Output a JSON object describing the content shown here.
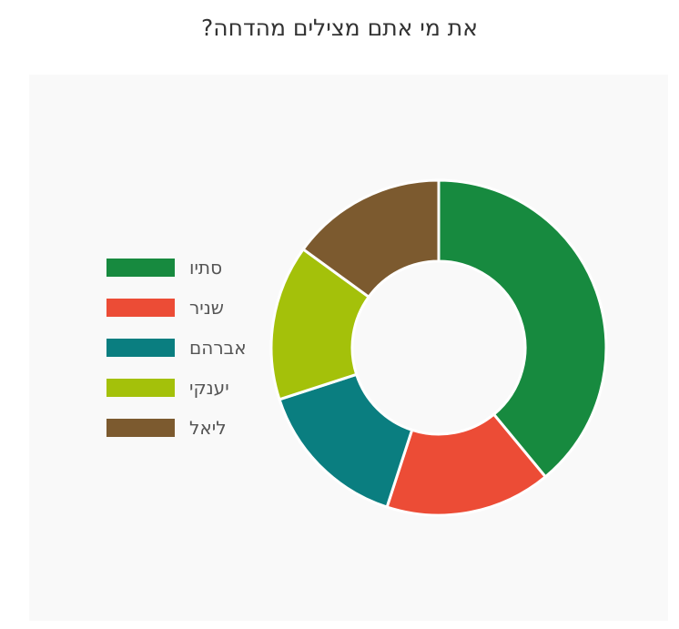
{
  "chart_data": {
    "type": "donut",
    "title": "את מי אתם מצילים מהדחה?",
    "categories": [
      "סתיו",
      "שניר",
      "אברהם",
      "יענקי",
      "ליאל"
    ],
    "values": [
      39,
      16,
      15,
      15,
      15
    ],
    "colors": [
      "#178A3F",
      "#EC4C36",
      "#0A7E80",
      "#A4C10A",
      "#7C5A2F"
    ],
    "legend_position": "left",
    "start_angle": "top",
    "direction": "clockwise"
  }
}
